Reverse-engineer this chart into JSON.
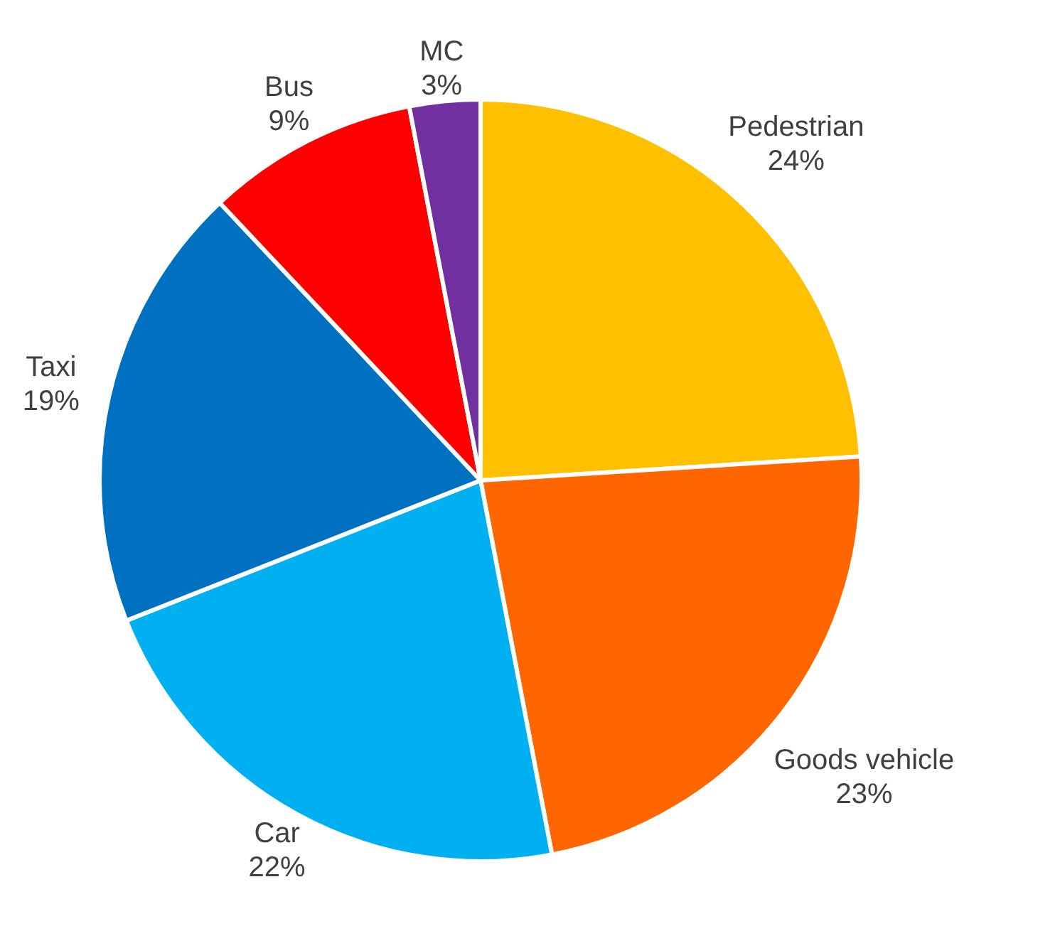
{
  "chart_data": {
    "type": "pie",
    "categories": [
      "Pedestrian",
      "Goods vehicle",
      "Car",
      "Taxi",
      "Bus",
      "MC"
    ],
    "values": [
      24,
      23,
      22,
      19,
      9,
      3
    ],
    "value_labels": [
      "24%",
      "23%",
      "22%",
      "19%",
      "9%",
      "3%"
    ],
    "colors": [
      "#ffc000",
      "#ff6600",
      "#00b0f0",
      "#0070c0",
      "#ff0000",
      "#7030a0"
    ]
  }
}
